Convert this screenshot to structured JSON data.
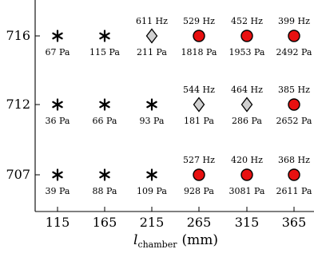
{
  "chart_data": {
    "type": "scatter",
    "title": "",
    "xlabel": "l",
    "xlabel_subscript": "chamber",
    "xlabel_unit": "(mm)",
    "ylabel": "",
    "x_ticks": [
      "115",
      "165",
      "215",
      "265",
      "315",
      "365"
    ],
    "y_ticks": [
      "716",
      "712",
      "707"
    ],
    "marker_colors": {
      "star": "#000000",
      "diamond": "#d0d0d0",
      "circle": "#e81010",
      "edge": "#000000"
    },
    "points": [
      {
        "y": "716",
        "x": "115",
        "marker": "star",
        "pressure": "67 Pa",
        "freq": ""
      },
      {
        "y": "716",
        "x": "165",
        "marker": "star",
        "pressure": "115 Pa",
        "freq": ""
      },
      {
        "y": "716",
        "x": "215",
        "marker": "diamond",
        "pressure": "211 Pa",
        "freq": "611 Hz"
      },
      {
        "y": "716",
        "x": "265",
        "marker": "circle",
        "pressure": "1818 Pa",
        "freq": "529 Hz"
      },
      {
        "y": "716",
        "x": "315",
        "marker": "circle",
        "pressure": "1953 Pa",
        "freq": "452 Hz"
      },
      {
        "y": "716",
        "x": "365",
        "marker": "circle",
        "pressure": "2492 Pa",
        "freq": "399 Hz"
      },
      {
        "y": "712",
        "x": "115",
        "marker": "star",
        "pressure": "36 Pa",
        "freq": ""
      },
      {
        "y": "712",
        "x": "165",
        "marker": "star",
        "pressure": "66 Pa",
        "freq": ""
      },
      {
        "y": "712",
        "x": "215",
        "marker": "star",
        "pressure": "93 Pa",
        "freq": ""
      },
      {
        "y": "712",
        "x": "265",
        "marker": "diamond",
        "pressure": "181 Pa",
        "freq": "544 Hz"
      },
      {
        "y": "712",
        "x": "315",
        "marker": "diamond",
        "pressure": "286 Pa",
        "freq": "464 Hz"
      },
      {
        "y": "712",
        "x": "365",
        "marker": "circle",
        "pressure": "2652 Pa",
        "freq": "385 Hz"
      },
      {
        "y": "707",
        "x": "115",
        "marker": "star",
        "pressure": "39 Pa",
        "freq": ""
      },
      {
        "y": "707",
        "x": "165",
        "marker": "star",
        "pressure": "88 Pa",
        "freq": ""
      },
      {
        "y": "707",
        "x": "215",
        "marker": "star",
        "pressure": "109 Pa",
        "freq": ""
      },
      {
        "y": "707",
        "x": "265",
        "marker": "circle",
        "pressure": "928 Pa",
        "freq": "527 Hz"
      },
      {
        "y": "707",
        "x": "315",
        "marker": "circle",
        "pressure": "3081 Pa",
        "freq": "420 Hz"
      },
      {
        "y": "707",
        "x": "365",
        "marker": "circle",
        "pressure": "2611 Pa",
        "freq": "368 Hz"
      }
    ]
  }
}
